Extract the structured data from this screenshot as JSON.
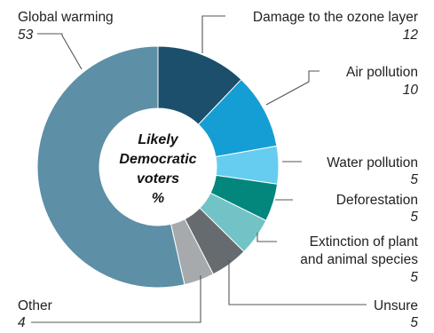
{
  "chart_data": {
    "type": "pie",
    "variant": "donut",
    "center_label": [
      "Likely",
      "Democratic",
      "voters",
      "%"
    ],
    "start_angle_deg": 0,
    "direction": "clockwise",
    "slices": [
      {
        "label": "Damage to the ozone layer",
        "value": 12,
        "value_label": "12",
        "color": "#1b4f6b"
      },
      {
        "label": "Air pollution",
        "value": 10,
        "value_label": "10",
        "color": "#159ed4"
      },
      {
        "label": "Water pollution",
        "value": 5,
        "value_label": "5",
        "color": "#66cdf0"
      },
      {
        "label": "Deforestation",
        "value": 5,
        "value_label": "5",
        "color": "#03877c"
      },
      {
        "label": "Extinction of plant and animal species",
        "label_lines": [
          "Extinction of plant",
          "and animal species"
        ],
        "value": 5,
        "value_label": "5",
        "color": "#71c3c5"
      },
      {
        "label": "Unsure",
        "value": 5,
        "value_label": "5",
        "color": "#666b70"
      },
      {
        "label": "Other",
        "value": 4,
        "value_label": "4",
        "color": "#a6aaad"
      },
      {
        "label": "Global warming",
        "value": 53,
        "value_label": "53",
        "color": "#5d8fa6"
      }
    ]
  }
}
